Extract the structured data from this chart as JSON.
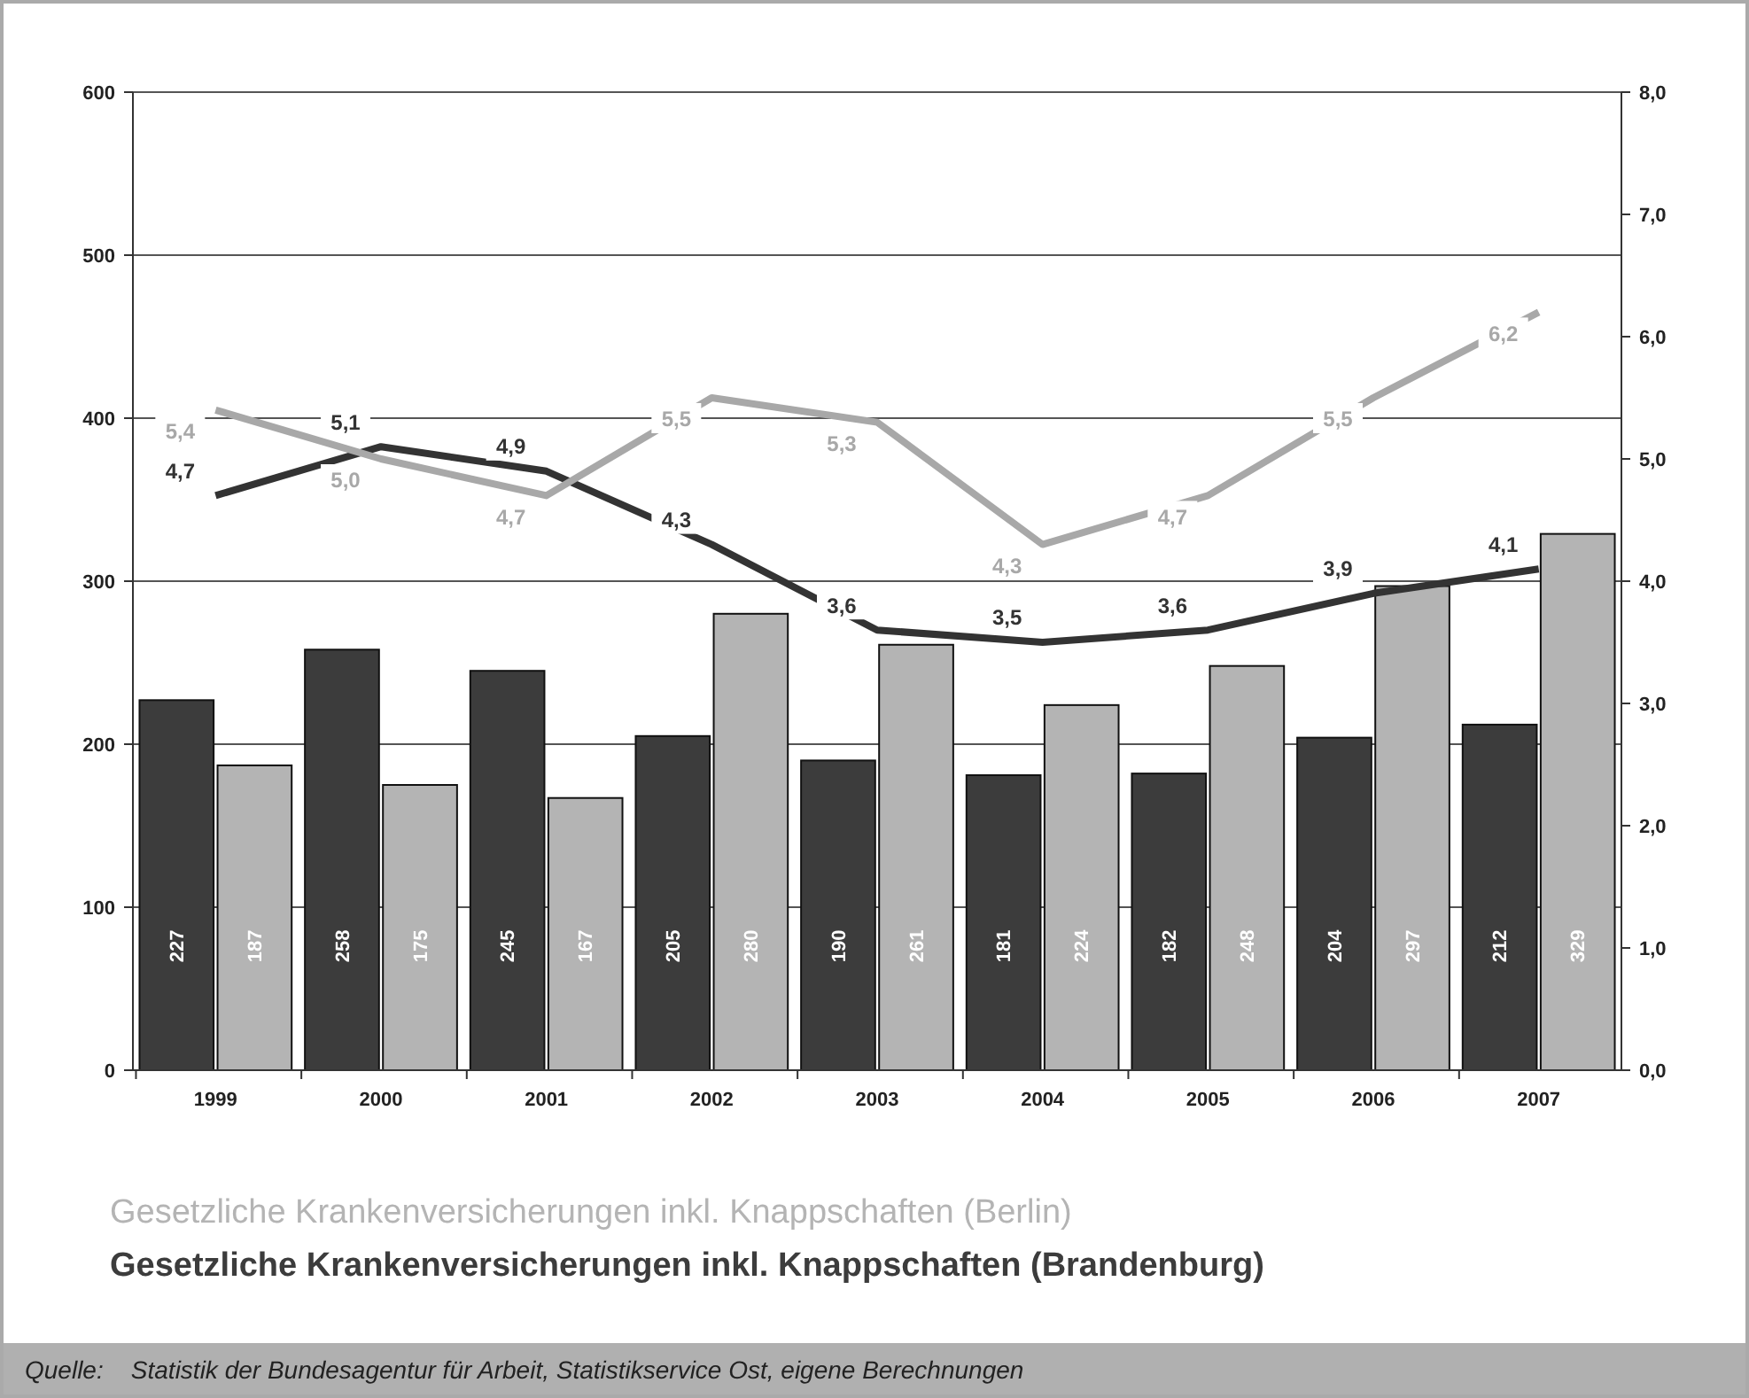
{
  "chart_data": {
    "type": "bar",
    "categories": [
      "1999",
      "2000",
      "2001",
      "2002",
      "2003",
      "2004",
      "2005",
      "2006",
      "2007"
    ],
    "series": [
      {
        "name": "Gesetzliche Krankenversicherungen inkl. Knappschaften (Brandenburg)",
        "color": "#3c3c3c",
        "values": [
          227,
          258,
          245,
          205,
          190,
          181,
          182,
          204,
          212
        ]
      },
      {
        "name": "Gesetzliche Krankenversicherungen inkl. Knappschaften (Berlin)",
        "color": "#b4b4b4",
        "values": [
          187,
          175,
          167,
          280,
          261,
          224,
          248,
          297,
          329
        ]
      },
      {
        "type": "line",
        "axis": "y2",
        "color": "#333333",
        "values": [
          4.7,
          5.1,
          4.9,
          4.3,
          3.6,
          3.5,
          3.6,
          3.9,
          4.1
        ],
        "value_labels": [
          "4,7",
          "5,1",
          "4,9",
          "4,3",
          "3,6",
          "3,5",
          "3,6",
          "3,9",
          "4,1"
        ]
      },
      {
        "type": "line",
        "axis": "y2",
        "color": "#a8a8a8",
        "values": [
          5.4,
          5.0,
          4.7,
          5.5,
          5.3,
          4.3,
          4.7,
          5.5,
          6.2
        ],
        "value_labels": [
          "5,4",
          "5,0",
          "4,7",
          "5,5",
          "5,3",
          "4,3",
          "4,7",
          "5,5",
          "6,2"
        ]
      }
    ],
    "ylim": [
      0,
      600
    ],
    "yticks": [
      0,
      100,
      200,
      300,
      400,
      500,
      600
    ],
    "y2lim": [
      0,
      8
    ],
    "y2ticks": [
      {
        "value": 0,
        "label": "0,0"
      },
      {
        "value": 1,
        "label": "1,0"
      },
      {
        "value": 2,
        "label": "2,0"
      },
      {
        "value": 3,
        "label": "3,0"
      },
      {
        "value": 4,
        "label": "4,0"
      },
      {
        "value": 5,
        "label": "5,0"
      },
      {
        "value": 6,
        "label": "6,0"
      },
      {
        "value": 7,
        "label": "7,0"
      },
      {
        "value": 8,
        "label": "8,0"
      }
    ],
    "grid": "y",
    "data_labels": true,
    "legend": "bottom",
    "marker": "none",
    "annotations": [
      "Quelle:    Statistik der Bundesagentur für Arbeit, Statistikservice Ost, eigene Berechnungen"
    ]
  }
}
